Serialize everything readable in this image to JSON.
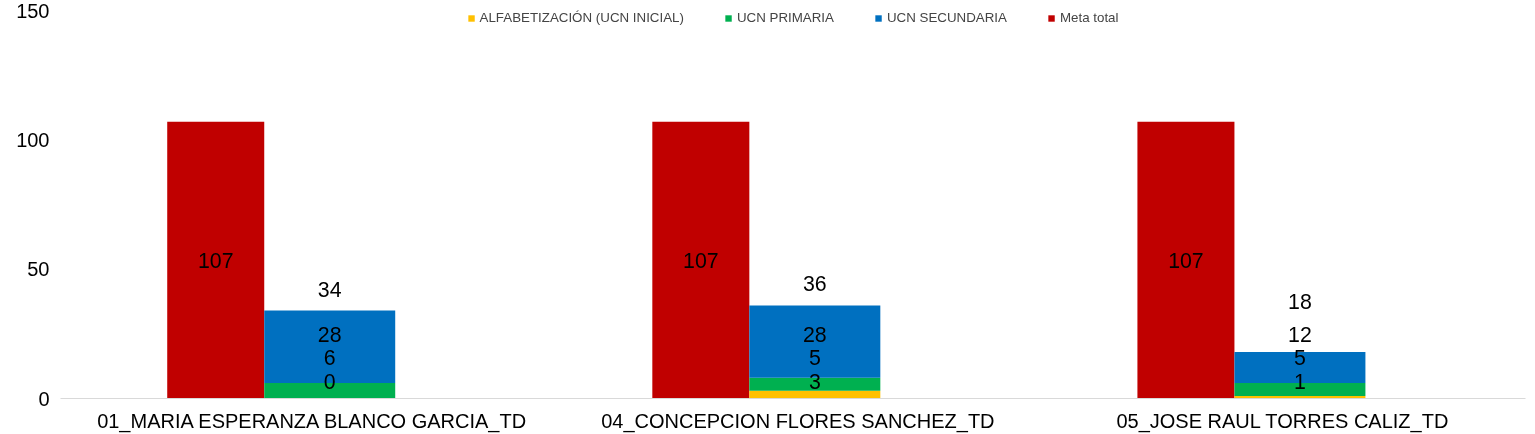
{
  "chart_data": [
    {
      "type": "bar",
      "categories": [
        null,
        null,
        null
      ],
      "tick_labels": "y",
      "series": [
        {
          "name": "Meta total",
          "color": "#c00000",
          "values": [
            107,
            107,
            107
          ]
        }
      ],
      "ylim": [
        0,
        150
      ],
      "yticks": [
        0,
        50,
        100,
        150
      ],
      "data_labels": true,
      "grid": false,
      "legend": "top"
    },
    {
      "type": "bar",
      "stacked": true,
      "categories": [
        "01_MARIA ESPERANZA BLANCO GARCIA_TD",
        "04_CONCEPCION FLORES SANCHEZ_TD",
        "05_JOSE RAUL TORRES CALIZ_TD"
      ],
      "series": [
        {
          "name": "ALFABETIZACIÓN (UCN INICIAL)",
          "color": "#ffc000",
          "values": [
            0,
            3,
            1
          ]
        },
        {
          "name": "UCN PRIMARIA",
          "color": "#00b050",
          "values": [
            6,
            5,
            5
          ]
        },
        {
          "name": "UCN SECUNDARIA",
          "color": "#0070c0",
          "values": [
            28,
            28,
            12
          ]
        }
      ],
      "totals": [
        "34",
        "36",
        "18"
      ],
      "ylim": [
        0,
        150
      ],
      "tick_labels": "x",
      "data_labels": true,
      "grid": false,
      "legend": "top"
    }
  ]
}
